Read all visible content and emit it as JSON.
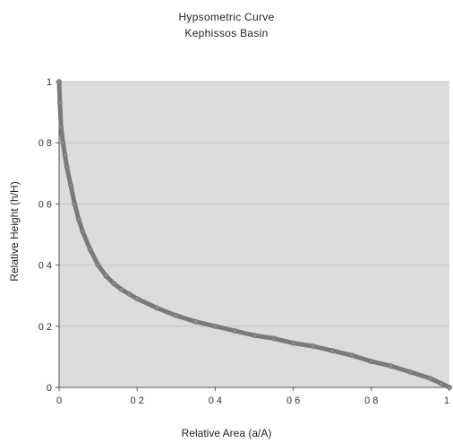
{
  "chart_data": {
    "type": "line",
    "title": "Hypsometric Curve",
    "subtitle": "Kephissos Basin",
    "xlabel": "Relative Area (a/A)",
    "ylabel": "Relative Height (h/H)",
    "xlim": [
      0,
      1
    ],
    "ylim": [
      0,
      1
    ],
    "x_ticks": [
      "0",
      "0 2",
      "0 4",
      "0 6",
      "0 8",
      "1"
    ],
    "y_ticks": [
      "0",
      "0 2",
      "0 4",
      "0 6",
      "0 8",
      "1"
    ],
    "grid": true,
    "legend": "none",
    "series_color": "#7a7a7a",
    "plot_background": "#dcdcdc",
    "series": [
      {
        "x": [
          0.0,
          0.002,
          0.005,
          0.01,
          0.015,
          0.02,
          0.03,
          0.04,
          0.05,
          0.06,
          0.08,
          0.1,
          0.12,
          0.14,
          0.16,
          0.18,
          0.2,
          0.25,
          0.3,
          0.35,
          0.4,
          0.45,
          0.5,
          0.55,
          0.6,
          0.65,
          0.7,
          0.75,
          0.8,
          0.85,
          0.9,
          0.95,
          0.98,
          1.0
        ],
        "y": [
          1.0,
          0.93,
          0.85,
          0.8,
          0.76,
          0.72,
          0.66,
          0.6,
          0.55,
          0.51,
          0.45,
          0.4,
          0.365,
          0.34,
          0.32,
          0.305,
          0.29,
          0.26,
          0.235,
          0.215,
          0.2,
          0.185,
          0.17,
          0.16,
          0.145,
          0.135,
          0.12,
          0.105,
          0.085,
          0.07,
          0.05,
          0.03,
          0.012,
          0.0
        ]
      }
    ]
  }
}
